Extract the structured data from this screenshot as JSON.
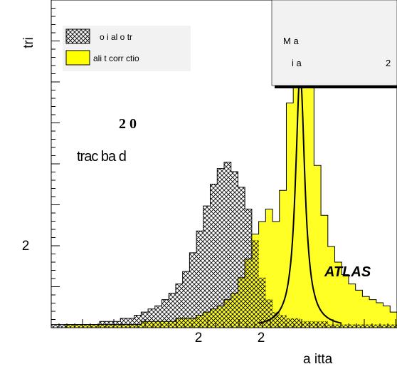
{
  "chart_data": {
    "type": "histogram",
    "ylabel": "tri",
    "xlabel": "a itta",
    "x_tick_labels": [
      "2",
      "2"
    ],
    "y_tick_labels": [
      "2"
    ],
    "energy_label": "2 0",
    "sample_label": "trac ba d",
    "experiment_label": "ATLAS",
    "legend": [
      {
        "label": "o i al o tr",
        "fill": "crosshatch",
        "color": "#000000"
      },
      {
        "label": "ali t corr ctio",
        "fill": "solid",
        "color": "#ffff00"
      }
    ],
    "stats_box": {
      "line1": "M a",
      "line2_left": "i a",
      "line2_right": "2"
    },
    "xlim": [
      0,
      100
    ],
    "ylim": [
      0,
      105
    ],
    "x": [
      0,
      2,
      4,
      6,
      8,
      10,
      12,
      14,
      16,
      18,
      20,
      22,
      24,
      26,
      28,
      30,
      32,
      34,
      36,
      38,
      40,
      42,
      44,
      46,
      48,
      50,
      52,
      54,
      56,
      58,
      60,
      62,
      64,
      66,
      68,
      70,
      72,
      74,
      76,
      78,
      80,
      82,
      84,
      86,
      88,
      90,
      92,
      94,
      96,
      98,
      100
    ],
    "series": [
      {
        "name": "o i al o tr",
        "values": [
          1,
          1,
          1,
          1,
          1,
          1,
          1,
          2,
          2,
          2,
          3,
          3,
          4,
          5,
          6,
          7,
          9,
          11,
          14,
          18,
          24,
          31,
          39,
          46,
          51,
          53,
          50,
          45,
          38,
          28,
          16,
          9,
          5,
          4,
          3,
          3,
          2,
          2,
          2,
          2,
          1,
          1,
          1,
          1,
          1,
          1,
          1,
          1,
          1,
          1,
          1
        ]
      },
      {
        "name": "ali t corr ctio",
        "values": [
          0,
          0,
          1,
          1,
          1,
          1,
          1,
          1,
          1,
          1,
          1,
          1,
          1,
          2,
          2,
          2,
          2,
          2,
          3,
          3,
          3,
          4,
          5,
          6,
          7,
          9,
          11,
          16,
          22,
          30,
          34,
          38,
          34,
          44,
          72,
          90,
          100,
          78,
          52,
          36,
          26,
          21,
          17,
          14,
          12,
          10,
          9,
          8,
          7,
          5,
          5
        ]
      }
    ],
    "fit_curve": {
      "type": "breit-wigner",
      "peak_x": 72,
      "peak_y": 82,
      "width": 1.6
    }
  }
}
